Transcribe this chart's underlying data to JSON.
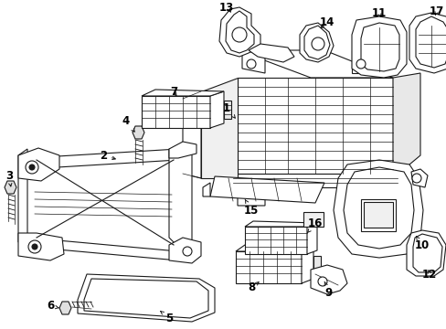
{
  "background_color": "#ffffff",
  "line_color": "#1a1a1a",
  "text_color": "#000000",
  "figsize": [
    4.89,
    3.6
  ],
  "dpi": 100,
  "label_fontsize": 8.5,
  "lw_main": 0.8,
  "lw_thin": 0.5
}
